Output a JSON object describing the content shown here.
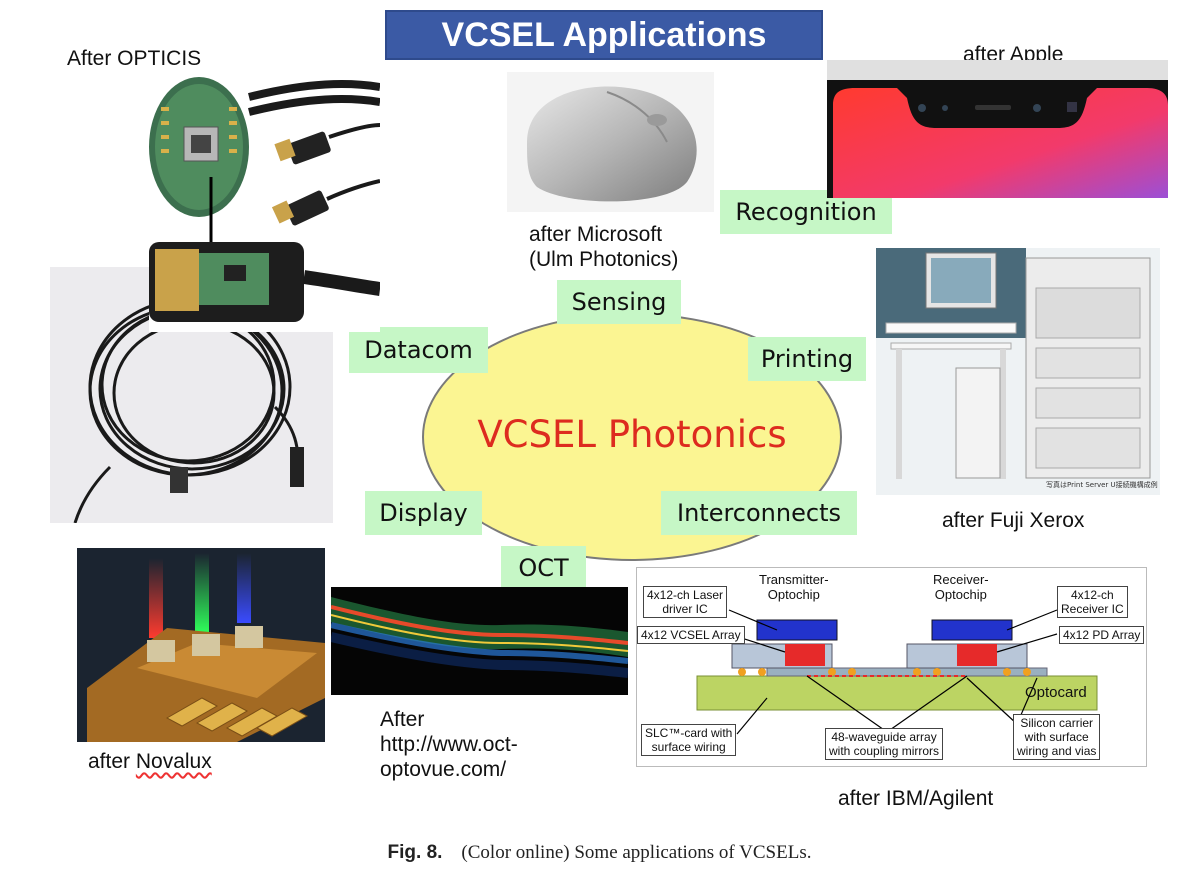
{
  "title": "VCSEL Applications",
  "center_label": "VCSEL Photonics",
  "tags": {
    "recognition": "Recognition",
    "sensing": "Sensing",
    "datacom": "Datacom",
    "printing": "Printing",
    "display": "Display",
    "interconnects": "Interconnects",
    "oct": "OCT"
  },
  "credits": {
    "opticis": "After OPTICIS",
    "apple": "after Apple",
    "microsoft": "after Microsoft\n(Ulm Photonics)",
    "fuji": "after Fuji Xerox",
    "novalux_prefix": "after ",
    "novalux_name": "Novalux",
    "octoptovue": "After\nhttp://www.oct-\noptovue.com/",
    "ibm": "after IBM/Agilent"
  },
  "ibm_diagram": {
    "transmitter": "Transmitter-\nOptochip",
    "receiver": "Receiver-\nOptochip",
    "laser_driver": "4x12-ch Laser\ndriver IC",
    "receiver_ic": "4x12-ch\nReceiver IC",
    "vcsel_array": "4x12 VCSEL Array",
    "pd_array": "4x12 PD Array",
    "optocard": "Optocard",
    "slc": "SLC™-card with\nsurface wiring",
    "waveguide": "48-waveguide array\nwith coupling mirrors",
    "silicon": "Silicon carrier\nwith surface\nwiring and vias"
  },
  "fuji_small": "写真はPrint Server U接続機構成例",
  "caption": {
    "label": "Fig. 8.",
    "text": "(Color online) Some applications of VCSELs."
  },
  "colors": {
    "title_bg": "#3b5aa5",
    "tag_bg": "#c6f7c6",
    "ellipse_fill": "#fbf592",
    "center_text": "#dd2b1f"
  }
}
